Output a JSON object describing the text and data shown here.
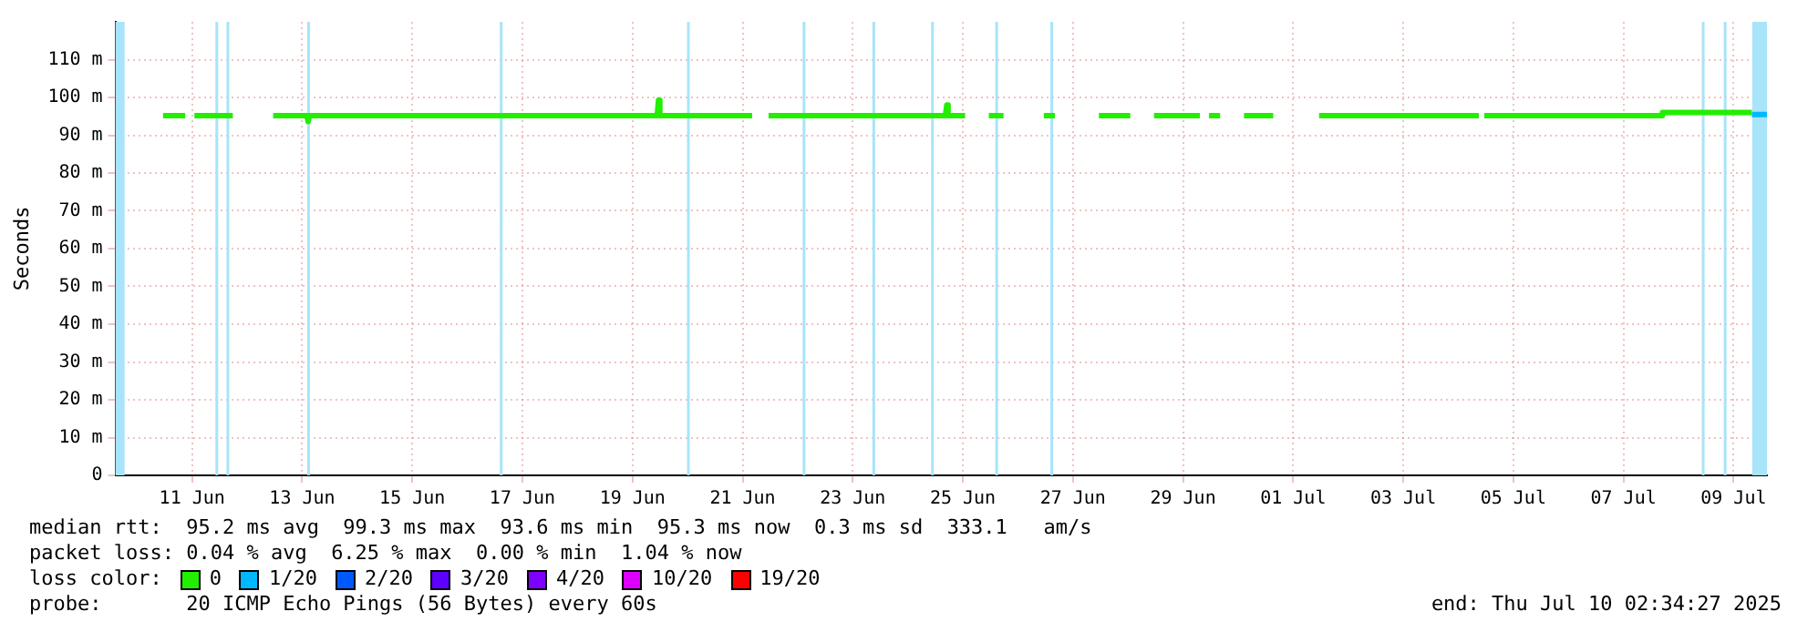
{
  "chart_data": {
    "type": "line",
    "ylabel": "Seconds",
    "xlim": [
      "2025-06-10T02:34",
      "2025-07-10T02:34"
    ],
    "xticks": [
      {
        "value": "2025-06-11T12:00",
        "label": "11 Jun"
      },
      {
        "value": "2025-06-13T12:00",
        "label": "13 Jun"
      },
      {
        "value": "2025-06-15T12:00",
        "label": "15 Jun"
      },
      {
        "value": "2025-06-17T12:00",
        "label": "17 Jun"
      },
      {
        "value": "2025-06-19T12:00",
        "label": "19 Jun"
      },
      {
        "value": "2025-06-21T12:00",
        "label": "21 Jun"
      },
      {
        "value": "2025-06-23T12:00",
        "label": "23 Jun"
      },
      {
        "value": "2025-06-25T12:00",
        "label": "25 Jun"
      },
      {
        "value": "2025-06-27T12:00",
        "label": "27 Jun"
      },
      {
        "value": "2025-06-29T12:00",
        "label": "29 Jun"
      },
      {
        "value": "2025-07-01T12:00",
        "label": "01 Jul"
      },
      {
        "value": "2025-07-03T12:00",
        "label": "03 Jul"
      },
      {
        "value": "2025-07-05T12:00",
        "label": "05 Jul"
      },
      {
        "value": "2025-07-07T12:00",
        "label": "07 Jul"
      },
      {
        "value": "2025-07-09T12:00",
        "label": "09 Jul"
      }
    ],
    "ylim": [
      0,
      120
    ],
    "yticks": [
      0,
      {
        "value": 10,
        "label": "10 m"
      },
      {
        "value": 20,
        "label": "20 m"
      },
      {
        "value": 30,
        "label": "30 m"
      },
      {
        "value": 40,
        "label": "40 m"
      },
      {
        "value": 50,
        "label": "50 m"
      },
      {
        "value": 60,
        "label": "60 m"
      },
      {
        "value": 70,
        "label": "70 m"
      },
      {
        "value": 80,
        "label": "80 m"
      },
      {
        "value": 90,
        "label": "90 m"
      },
      {
        "value": 100,
        "label": "100 m"
      },
      {
        "value": 110,
        "label": "110 m"
      }
    ],
    "grid": true,
    "legend": "bottom",
    "legend_title": "loss color:",
    "marker": "none",
    "line_style": "solid",
    "series": [
      {
        "name": "0",
        "color": "#22ee00",
        "x": [
          "2025-06-10T23:20",
          "2025-06-11T09:00",
          "2025-06-11T11:00",
          "2025-06-11T13:00",
          "2025-06-12T05:45",
          "2025-06-12T12:00",
          "2025-06-12T23:20",
          "2025-06-13T14:00",
          "2025-06-13T14:35",
          "2025-06-13T15:10",
          "2025-06-19T22:45",
          "2025-06-19T23:20",
          "2025-06-19T23:55",
          "2025-06-21T16:10",
          "2025-06-21T20:00",
          "2025-06-21T23:20",
          "2025-06-25T04:25",
          "2025-06-25T05:00",
          "2025-06-25T05:35",
          "2025-06-25T13:00",
          "2025-06-25T18:00",
          "2025-06-25T23:20",
          "2025-06-26T05:45",
          "2025-06-26T15:00",
          "2025-06-26T23:20",
          "2025-06-27T04:10",
          "2025-06-27T15:00",
          "2025-06-27T23:20",
          "2025-06-28T13:00",
          "2025-06-28T18:00",
          "2025-06-28T23:20",
          "2025-06-29T19:20",
          "2025-06-29T21:00",
          "2025-06-29T23:20",
          "2025-06-30T04:10",
          "2025-06-30T09:00",
          "2025-06-30T14:35",
          "2025-07-01T03:20",
          "2025-07-01T12:00",
          "2025-07-01T23:20",
          "2025-07-04T21:00",
          "2025-07-04T22:00",
          "2025-07-04T23:20",
          "2025-07-08T05:00",
          "2025-07-08T05:01",
          "2025-07-09T20:00"
        ],
        "values": [
          95.2,
          95.2,
          null,
          95.2,
          95.2,
          null,
          95.2,
          95.2,
          93.6,
          95.2,
          95.2,
          99.3,
          95.2,
          95.2,
          null,
          95.2,
          95.2,
          98,
          95.2,
          95.2,
          null,
          95.2,
          95.2,
          null,
          95.2,
          95.2,
          null,
          95.2,
          95.2,
          null,
          95.2,
          95.2,
          null,
          95.2,
          95.2,
          null,
          95.2,
          95.2,
          null,
          95.2,
          95.2,
          null,
          95.2,
          95.2,
          96,
          96
        ]
      },
      {
        "name": "1/20",
        "color": "#00b8ff",
        "x": [
          "2025-07-09T20:00",
          "2025-07-10T02:34"
        ],
        "values": [
          95.5,
          95.5
        ]
      },
      {
        "name": "2/20",
        "color": "#0059ff"
      },
      {
        "name": "3/20",
        "color": "#5e00ff"
      },
      {
        "name": "4/20",
        "color": "#7e00ff"
      },
      {
        "name": "10/20",
        "color": "#dd00ff"
      },
      {
        "name": "19/20",
        "color": "#ff0000"
      }
    ],
    "bands": [
      {
        "axis": "x",
        "from": "2025-06-10T02:34",
        "to": "2025-06-10T06:34",
        "color": "#a8e4fa"
      },
      {
        "axis": "x",
        "from": "2025-06-11T22:10",
        "to": "2025-06-11T23:00",
        "color": "#a8e4fa"
      },
      {
        "axis": "x",
        "from": "2025-06-12T03:00",
        "to": "2025-06-12T03:50",
        "color": "#a8e4fa"
      },
      {
        "axis": "x",
        "from": "2025-06-13T14:10",
        "to": "2025-06-13T15:00",
        "color": "#a8e4fa"
      },
      {
        "axis": "x",
        "from": "2025-06-17T02:10",
        "to": "2025-06-17T03:00",
        "color": "#a8e4fa"
      },
      {
        "axis": "x",
        "from": "2025-06-20T11:45",
        "to": "2025-06-20T12:35",
        "color": "#a8e4fa"
      },
      {
        "axis": "x",
        "from": "2025-06-22T14:10",
        "to": "2025-06-22T15:00",
        "color": "#a8e4fa"
      },
      {
        "axis": "x",
        "from": "2025-06-23T20:35",
        "to": "2025-06-23T21:25",
        "color": "#a8e4fa"
      },
      {
        "axis": "x",
        "from": "2025-06-24T22:10",
        "to": "2025-06-24T23:00",
        "color": "#a8e4fa"
      },
      {
        "axis": "x",
        "from": "2025-06-26T02:10",
        "to": "2025-06-26T03:00",
        "color": "#a8e4fa"
      },
      {
        "axis": "x",
        "from": "2025-06-27T02:10",
        "to": "2025-06-27T03:00",
        "color": "#a8e4fa"
      },
      {
        "axis": "x",
        "from": "2025-07-08T22:10",
        "to": "2025-07-08T23:00",
        "color": "#a8e4fa"
      },
      {
        "axis": "x",
        "from": "2025-07-09T07:45",
        "to": "2025-07-09T08:35",
        "color": "#a8e4fa"
      },
      {
        "axis": "x",
        "from": "2025-07-09T20:10",
        "to": "2025-07-10T02:34",
        "color": "#a8e4fa"
      }
    ],
    "annotations": [
      "median rtt:  95.2 ms avg  99.3 ms max  93.6 ms min  95.3 ms now  0.3 ms sd  333.1   am/s",
      "packet loss: 0.04 % avg  6.25 % max  0.00 % min  1.04 % now",
      "probe:       20 ICMP Echo Pings (56 Bytes) every 60s",
      "end: Thu Jul 10 02:34:27 2025"
    ]
  }
}
